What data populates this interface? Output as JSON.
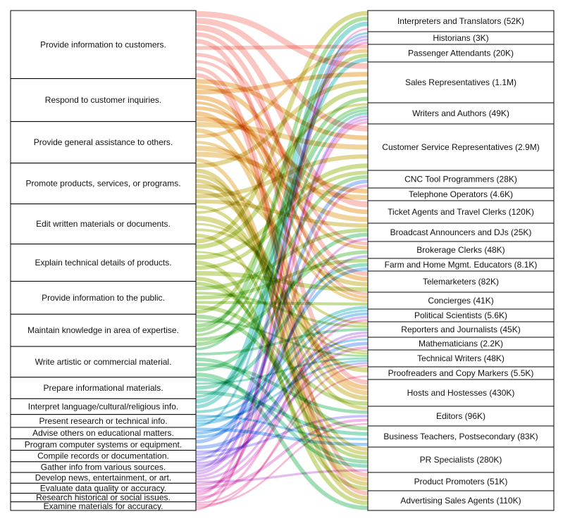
{
  "chart_data": {
    "type": "sankey",
    "title": "",
    "sources": [
      "Provide information to customers.",
      "Respond to customer inquiries.",
      "Provide general assistance to others.",
      "Promote products, services, or programs.",
      "Edit written materials or documents.",
      "Explain technical details of products.",
      "Provide information to the public.",
      "Maintain knowledge in area of expertise.",
      "Write artistic or commercial material.",
      "Prepare informational materials.",
      "Interpret language/cultural/religious info.",
      "Present research or technical info.",
      "Advise others on educational matters.",
      "Program computer systems or equipment.",
      "Compile records or documentation.",
      "Gather info from various sources.",
      "Develop news, entertainment, or art.",
      "Evaluate data quality or accuracy.",
      "Research historical or social issues.",
      "Examine materials for accuracy."
    ],
    "source_weights": [
      95,
      60,
      58,
      57,
      56,
      52,
      46,
      45,
      43,
      30,
      22,
      18,
      16,
      16,
      16,
      15,
      15,
      14,
      12,
      12
    ],
    "targets": [
      "Interpreters and Translators (52K)",
      "Historians (3K)",
      "Passenger Attendants (20K)",
      "Sales Representatives (1.1M)",
      "Writers and Authors (49K)",
      "Customer Service Representatives (2.9M)",
      "CNC Tool Programmers (28K)",
      "Telephone Operators (4.6K)",
      "Ticket Agents and Travel Clerks (120K)",
      "Broadcast Announcers and DJs (25K)",
      "Brokerage Clerks (48K)",
      "Farm and Home Mgmt. Educators (8.1K)",
      "Telemarketers (82K)",
      "Concierges (41K)",
      "Political Scientists (5.6K)",
      "Reporters and Journalists (45K)",
      "Mathematicians (2.2K)",
      "Technical Writers (48K)",
      "Proofreaders and Copy Markers (5.5K)",
      "Hosts and Hostesses (430K)",
      "Editors (96K)",
      "Business Teachers, Postsecondary (83K)",
      "PR Specialists (280K)",
      "Product Promoters (51K)",
      "Advertising Sales Agents (110K)"
    ],
    "target_weights": [
      30,
      18,
      25,
      58,
      30,
      66,
      25,
      18,
      32,
      26,
      24,
      18,
      30,
      24,
      18,
      22,
      18,
      24,
      18,
      38,
      28,
      30,
      36,
      26,
      28
    ],
    "source_colors": [
      "#f4978e",
      "#e8a33d",
      "#e3b04b",
      "#c9b43a",
      "#b9bd3a",
      "#a4c23b",
      "#8fc23e",
      "#6cc45a",
      "#52c47a",
      "#46c49a",
      "#44c2be",
      "#4ab7dc",
      "#4ea9ee",
      "#6b9cf2",
      "#9a8ef2",
      "#b587ee",
      "#cf82e6",
      "#e27fd6",
      "#ec7fc4",
      "#f083b8"
    ],
    "links": [
      [
        0,
        3
      ],
      [
        0,
        5
      ],
      [
        0,
        8
      ],
      [
        0,
        12
      ],
      [
        0,
        19
      ],
      [
        0,
        2
      ],
      [
        0,
        10
      ],
      [
        0,
        13
      ],
      [
        0,
        23
      ],
      [
        0,
        24
      ],
      [
        1,
        5
      ],
      [
        1,
        8
      ],
      [
        1,
        3
      ],
      [
        1,
        12
      ],
      [
        1,
        13
      ],
      [
        1,
        10
      ],
      [
        1,
        19
      ],
      [
        1,
        7
      ],
      [
        2,
        5
      ],
      [
        2,
        19
      ],
      [
        2,
        2
      ],
      [
        2,
        13
      ],
      [
        2,
        8
      ],
      [
        2,
        7
      ],
      [
        2,
        23
      ],
      [
        3,
        3
      ],
      [
        3,
        24
      ],
      [
        3,
        22
      ],
      [
        3,
        23
      ],
      [
        3,
        12
      ],
      [
        3,
        19
      ],
      [
        3,
        5
      ],
      [
        3,
        9
      ],
      [
        4,
        20
      ],
      [
        4,
        4
      ],
      [
        4,
        18
      ],
      [
        4,
        17
      ],
      [
        4,
        15
      ],
      [
        4,
        22
      ],
      [
        4,
        0
      ],
      [
        5,
        3
      ],
      [
        5,
        17
      ],
      [
        5,
        5
      ],
      [
        5,
        24
      ],
      [
        5,
        6
      ],
      [
        5,
        12
      ],
      [
        5,
        23
      ],
      [
        6,
        22
      ],
      [
        6,
        9
      ],
      [
        6,
        15
      ],
      [
        6,
        11
      ],
      [
        6,
        13
      ],
      [
        6,
        19
      ],
      [
        6,
        2
      ],
      [
        7,
        21
      ],
      [
        7,
        17
      ],
      [
        7,
        3
      ],
      [
        7,
        0
      ],
      [
        7,
        4
      ],
      [
        7,
        10
      ],
      [
        7,
        6
      ],
      [
        8,
        4
      ],
      [
        8,
        15
      ],
      [
        8,
        22
      ],
      [
        8,
        20
      ],
      [
        8,
        9
      ],
      [
        8,
        24
      ],
      [
        9,
        22
      ],
      [
        9,
        17
      ],
      [
        9,
        11
      ],
      [
        9,
        21
      ],
      [
        9,
        4
      ],
      [
        10,
        0
      ],
      [
        10,
        2
      ],
      [
        10,
        13
      ],
      [
        11,
        21
      ],
      [
        11,
        14
      ],
      [
        11,
        17
      ],
      [
        11,
        16
      ],
      [
        11,
        1
      ],
      [
        12,
        21
      ],
      [
        12,
        11
      ],
      [
        12,
        14
      ],
      [
        13,
        6
      ],
      [
        13,
        16
      ],
      [
        14,
        20
      ],
      [
        14,
        10
      ],
      [
        14,
        17
      ],
      [
        14,
        1
      ],
      [
        15,
        15
      ],
      [
        15,
        14
      ],
      [
        15,
        1
      ],
      [
        15,
        4
      ],
      [
        16,
        4
      ],
      [
        16,
        9
      ],
      [
        16,
        15
      ],
      [
        16,
        22
      ],
      [
        17,
        16
      ],
      [
        17,
        20
      ],
      [
        17,
        6
      ],
      [
        18,
        1
      ],
      [
        18,
        14
      ],
      [
        18,
        4
      ],
      [
        19,
        18
      ],
      [
        19,
        20
      ],
      [
        19,
        17
      ],
      [
        19,
        0
      ]
    ]
  }
}
